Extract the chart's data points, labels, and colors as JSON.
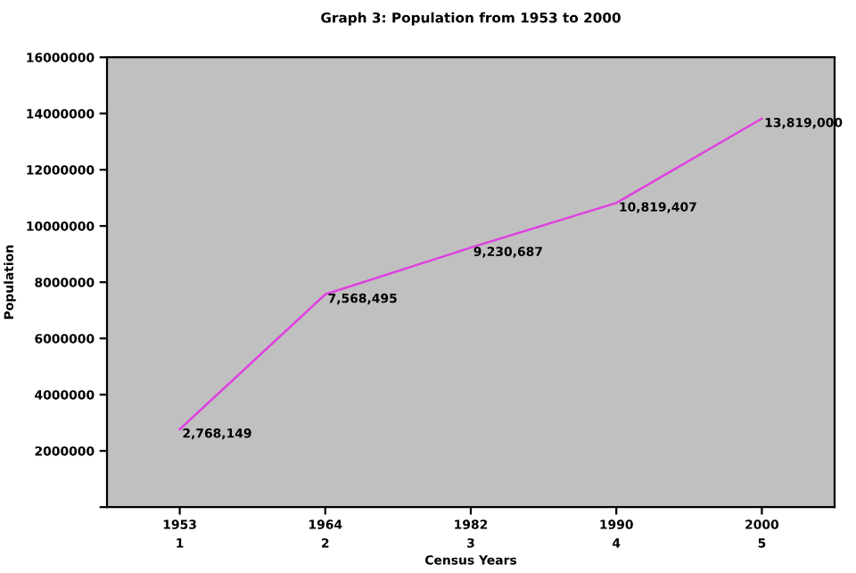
{
  "chart_data": {
    "type": "line",
    "title": "Graph 3: Population from 1953 to 2000",
    "xlabel": "Census Years",
    "ylabel": "Population",
    "categories": [
      "1953\n1",
      "1964\n2",
      "1982\n3",
      "1990\n4",
      "2000\n5"
    ],
    "ylim": [
      0,
      16000000
    ],
    "yticks": [
      {
        "value": 0,
        "label": null
      },
      2000000,
      4000000,
      6000000,
      8000000,
      10000000,
      12000000,
      14000000,
      16000000
    ],
    "series": [
      {
        "color": "#e040e0",
        "values": [
          2768149,
          7568495,
          9230687,
          10819407,
          13819000
        ],
        "value_labels": [
          "2,768,149",
          "7,568,495",
          "9,230,687",
          "10,819,407",
          "13,819,000"
        ]
      }
    ],
    "grid": false,
    "legend": false,
    "marker": "none",
    "line_style": "solid"
  }
}
